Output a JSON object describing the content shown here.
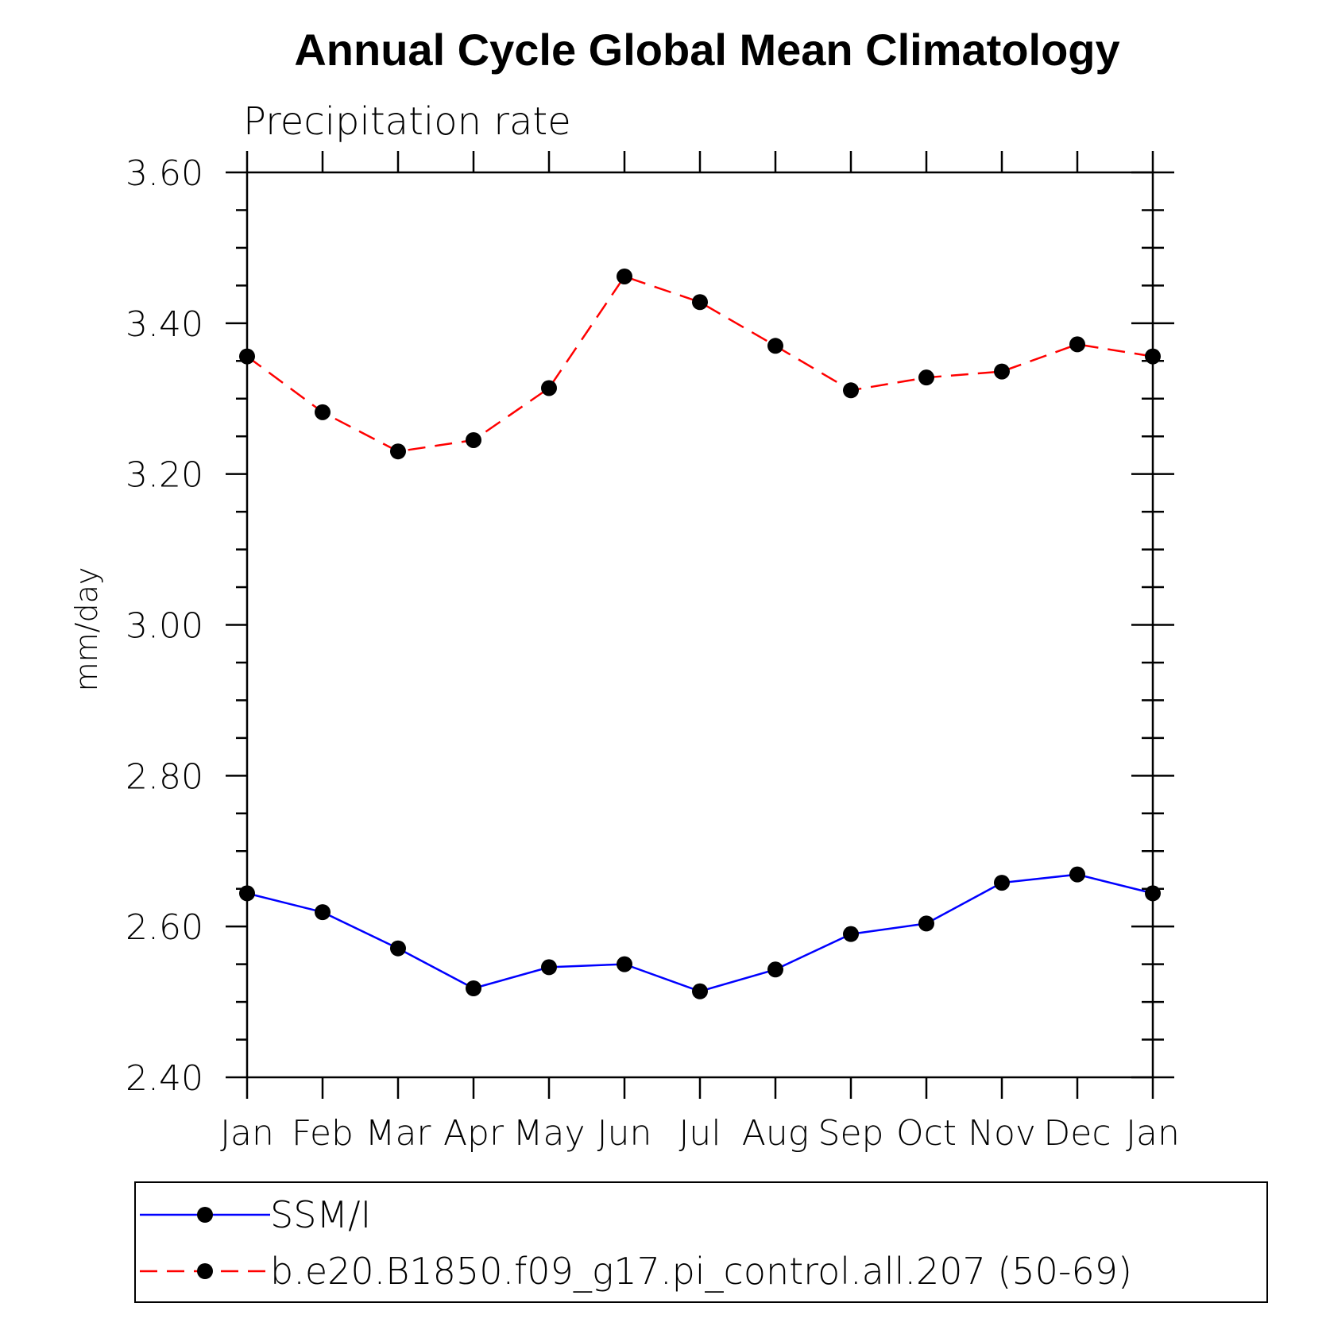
{
  "chart_data": {
    "type": "line",
    "title": "Annual Cycle Global Mean Climatology",
    "subtitle": "Precipitation rate",
    "xlabel": "",
    "ylabel": "mm/day",
    "categories": [
      "Jan",
      "Feb",
      "Mar",
      "Apr",
      "May",
      "Jun",
      "Jul",
      "Aug",
      "Sep",
      "Oct",
      "Nov",
      "Dec",
      "Jan"
    ],
    "ylim": [
      2.4,
      3.6
    ],
    "yticks": [
      "2.40",
      "2.60",
      "2.80",
      "3.00",
      "3.20",
      "3.40",
      "3.60"
    ],
    "grid": false,
    "legend_position": "bottom",
    "series": [
      {
        "name": "SSM/I",
        "color": "#0000ff",
        "line_style": "solid",
        "marker": "filled-circle",
        "values": [
          2.644,
          2.619,
          2.571,
          2.518,
          2.546,
          2.55,
          2.514,
          2.543,
          2.59,
          2.604,
          2.658,
          2.669,
          2.644
        ]
      },
      {
        "name": "b.e20.B1850.f09_g17.pi_control.all.207 (50-69)",
        "color": "#ff0000",
        "line_style": "dashed",
        "marker": "filled-circle",
        "values": [
          3.356,
          3.282,
          3.23,
          3.245,
          3.314,
          3.462,
          3.428,
          3.37,
          3.311,
          3.328,
          3.336,
          3.372,
          3.356
        ]
      }
    ]
  }
}
